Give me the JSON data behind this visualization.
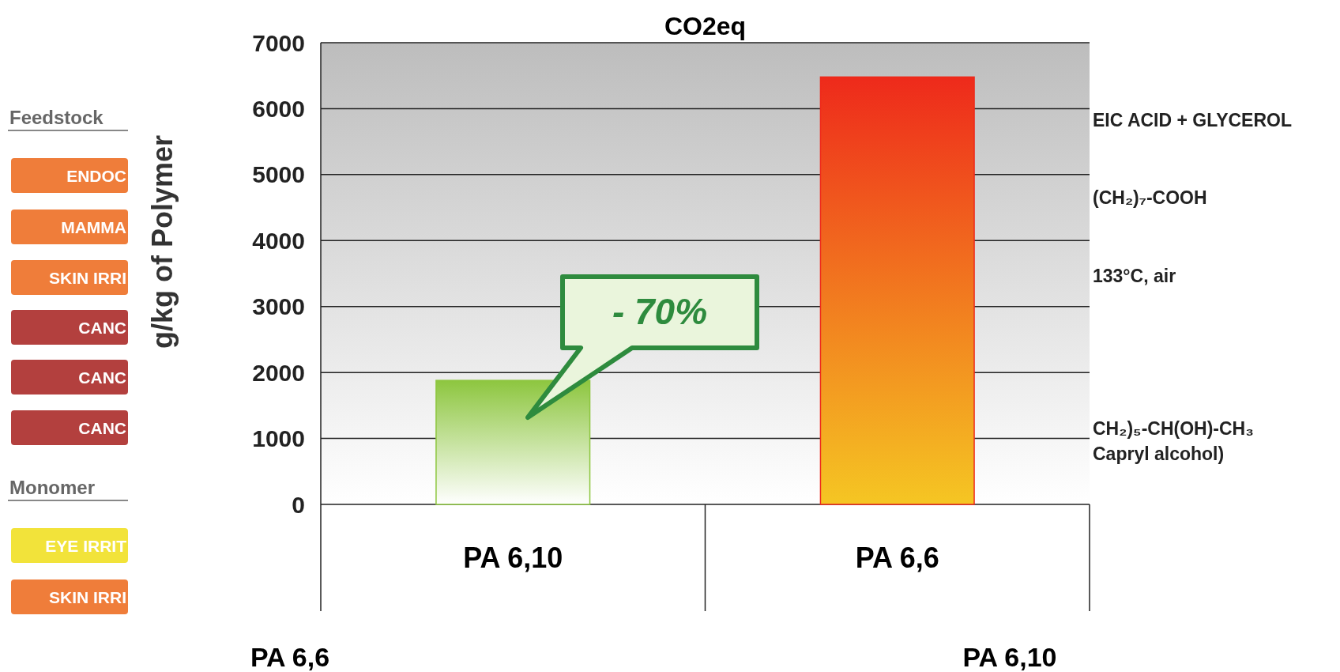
{
  "chart_data": {
    "type": "bar",
    "title": "CO2eq",
    "ylabel": "g/kg of Polymer",
    "categories": [
      "PA 6,10",
      "PA 6,6"
    ],
    "values": [
      1880,
      6480
    ],
    "colors": [
      "#8dc63f",
      "#ee2a1b"
    ],
    "ylim": [
      0,
      7000
    ],
    "yticks": [
      0,
      1000,
      2000,
      3000,
      4000,
      5000,
      6000,
      7000
    ],
    "grid": "y",
    "annotations": [
      "- 70%",
      "Feedstock",
      "ENDOC",
      "MAMMA",
      "SKIN IRRI",
      "CANC",
      "CANC",
      "CANC",
      "Monomer",
      "EYE IRRIT",
      "SKIN IRRI",
      "EIC ACID  +  GLYCEROL",
      "(CH₂)₇-COOH",
      "133°C, air",
      "CH₂)₅-CH(OH)-CH₃",
      "Capryl alcohol)",
      "PA 6,6",
      "PA 6,10"
    ]
  }
}
